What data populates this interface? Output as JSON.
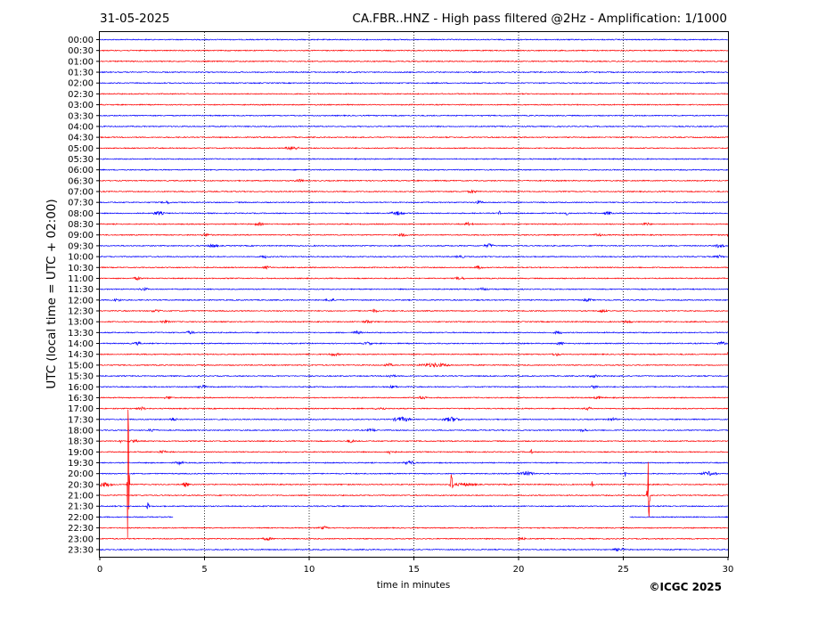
{
  "header": {
    "date": "31-05-2025",
    "title": "CA.FBR..HNZ - High pass filtered @2Hz - Amplification: 1/1000"
  },
  "footer": {
    "copyright": "©ICGC 2025"
  },
  "chart_data": {
    "type": "line",
    "title": "CA.FBR..HNZ - High pass filtered @2Hz - Amplification: 1/1000",
    "xlabel": "time in minutes",
    "ylabel": "UTC (local time = UTC + 02:00)",
    "xlim": [
      0,
      30
    ],
    "x_ticks": [
      0,
      5,
      10,
      15,
      20,
      25,
      30
    ],
    "grid": "vertical dotted lines at 5-minute intervals",
    "row_labels": [
      "00:00",
      "00:30",
      "01:00",
      "01:30",
      "02:00",
      "02:30",
      "03:00",
      "03:30",
      "04:00",
      "04:30",
      "05:00",
      "05:30",
      "06:00",
      "06:30",
      "07:00",
      "07:30",
      "08:00",
      "08:30",
      "09:00",
      "09:30",
      "10:00",
      "10:30",
      "11:00",
      "11:30",
      "12:00",
      "12:30",
      "13:00",
      "13:30",
      "14:00",
      "14:30",
      "15:00",
      "15:30",
      "16:00",
      "16:30",
      "17:00",
      "17:30",
      "18:00",
      "18:30",
      "19:00",
      "19:30",
      "20:00",
      "20:30",
      "21:00",
      "21:30",
      "22:00",
      "22:30",
      "23:00",
      "23:30"
    ],
    "series_colors": [
      "#0000ff",
      "#ff0000"
    ],
    "color_pattern": "rows alternate blue, red, red, blue (period of 4 half-hour rows)",
    "gap": {
      "row": "22:00",
      "x_range": [
        3.5,
        25.3
      ]
    },
    "events": [
      {
        "row": "20:30",
        "x": 1.35,
        "amp": 110
      },
      {
        "row": "20:30",
        "x": 16.8,
        "amp": 28
      },
      {
        "row": "20:30",
        "x": 23.5,
        "amp": 6
      },
      {
        "row": "21:00",
        "x": 26.2,
        "amp": 60
      },
      {
        "row": "21:30",
        "x": 2.3,
        "amp": 7
      },
      {
        "row": "20:00",
        "x": 25.1,
        "amp": 5
      },
      {
        "row": "19:00",
        "x": 20.6,
        "amp": 5
      },
      {
        "row": "08:00",
        "x": 19.1,
        "amp": 4
      },
      {
        "row": "08:00",
        "x": 22.3,
        "amp": 4
      },
      {
        "row": "09:00",
        "x": 30.0,
        "amp": 3
      },
      {
        "row": "14:30",
        "x": 30.0,
        "amp": 3
      },
      {
        "row": "18:30",
        "x": 1.0,
        "amp": 3
      }
    ],
    "bursts": [
      {
        "row": "05:00",
        "x": 9.2,
        "w": 0.7,
        "amp": 2.5
      },
      {
        "row": "06:30",
        "x": 9.5,
        "w": 0.5,
        "amp": 2
      },
      {
        "row": "07:00",
        "x": 17.8,
        "w": 0.5,
        "amp": 2
      },
      {
        "row": "07:30",
        "x": 3.2,
        "w": 0.5,
        "amp": 2
      },
      {
        "row": "07:30",
        "x": 18.1,
        "w": 0.5,
        "amp": 2
      },
      {
        "row": "08:00",
        "x": 2.8,
        "w": 0.6,
        "amp": 2.5
      },
      {
        "row": "08:00",
        "x": 14.2,
        "w": 0.7,
        "amp": 2.5
      },
      {
        "row": "08:00",
        "x": 24.3,
        "w": 0.5,
        "amp": 2
      },
      {
        "row": "08:30",
        "x": 7.6,
        "w": 0.5,
        "amp": 2
      },
      {
        "row": "08:30",
        "x": 17.6,
        "w": 0.5,
        "amp": 2
      },
      {
        "row": "08:30",
        "x": 26.1,
        "w": 0.5,
        "amp": 2
      },
      {
        "row": "09:00",
        "x": 5.1,
        "w": 0.5,
        "amp": 2
      },
      {
        "row": "09:00",
        "x": 14.5,
        "w": 0.5,
        "amp": 2
      },
      {
        "row": "09:00",
        "x": 23.8,
        "w": 0.5,
        "amp": 2
      },
      {
        "row": "09:30",
        "x": 5.4,
        "w": 0.5,
        "amp": 2.5
      },
      {
        "row": "09:30",
        "x": 18.6,
        "w": 0.5,
        "amp": 2.5
      },
      {
        "row": "09:30",
        "x": 29.6,
        "w": 0.5,
        "amp": 2.5
      },
      {
        "row": "10:00",
        "x": 7.9,
        "w": 0.5,
        "amp": 2
      },
      {
        "row": "10:00",
        "x": 17.2,
        "w": 0.5,
        "amp": 2
      },
      {
        "row": "10:00",
        "x": 29.6,
        "w": 0.5,
        "amp": 2
      },
      {
        "row": "10:30",
        "x": 8.0,
        "w": 0.5,
        "amp": 2
      },
      {
        "row": "10:30",
        "x": 18.1,
        "w": 0.5,
        "amp": 2
      },
      {
        "row": "11:00",
        "x": 1.8,
        "w": 0.5,
        "amp": 2
      },
      {
        "row": "11:00",
        "x": 17.2,
        "w": 0.5,
        "amp": 2
      },
      {
        "row": "11:30",
        "x": 2.1,
        "w": 0.5,
        "amp": 2
      },
      {
        "row": "11:30",
        "x": 18.3,
        "w": 0.5,
        "amp": 2
      },
      {
        "row": "12:00",
        "x": 0.8,
        "w": 0.5,
        "amp": 2
      },
      {
        "row": "12:00",
        "x": 11.0,
        "w": 0.5,
        "amp": 2
      },
      {
        "row": "12:00",
        "x": 23.3,
        "w": 0.5,
        "amp": 2
      },
      {
        "row": "12:30",
        "x": 2.7,
        "w": 0.5,
        "amp": 2
      },
      {
        "row": "12:30",
        "x": 13.1,
        "w": 0.5,
        "amp": 2
      },
      {
        "row": "12:30",
        "x": 24.0,
        "w": 0.5,
        "amp": 2
      },
      {
        "row": "13:00",
        "x": 3.1,
        "w": 0.5,
        "amp": 2
      },
      {
        "row": "13:00",
        "x": 12.8,
        "w": 0.5,
        "amp": 2
      },
      {
        "row": "13:00",
        "x": 25.2,
        "w": 0.5,
        "amp": 2
      },
      {
        "row": "13:30",
        "x": 4.3,
        "w": 0.5,
        "amp": 2
      },
      {
        "row": "13:30",
        "x": 12.3,
        "w": 0.5,
        "amp": 2
      },
      {
        "row": "13:30",
        "x": 21.9,
        "w": 0.5,
        "amp": 2
      },
      {
        "row": "14:00",
        "x": 1.8,
        "w": 0.5,
        "amp": 2
      },
      {
        "row": "14:00",
        "x": 12.8,
        "w": 0.5,
        "amp": 2
      },
      {
        "row": "14:00",
        "x": 22.0,
        "w": 0.5,
        "amp": 2
      },
      {
        "row": "14:00",
        "x": 29.7,
        "w": 0.5,
        "amp": 2
      },
      {
        "row": "14:30",
        "x": 11.2,
        "w": 0.6,
        "amp": 2
      },
      {
        "row": "14:30",
        "x": 21.8,
        "w": 0.5,
        "amp": 2
      },
      {
        "row": "15:00",
        "x": 16.0,
        "w": 1.6,
        "amp": 2.5
      },
      {
        "row": "15:00",
        "x": 13.8,
        "w": 0.5,
        "amp": 2
      },
      {
        "row": "15:30",
        "x": 13.9,
        "w": 0.5,
        "amp": 2
      },
      {
        "row": "15:30",
        "x": 23.6,
        "w": 0.5,
        "amp": 2
      },
      {
        "row": "16:00",
        "x": 4.9,
        "w": 0.5,
        "amp": 2
      },
      {
        "row": "16:00",
        "x": 14.0,
        "w": 0.5,
        "amp": 2
      },
      {
        "row": "16:00",
        "x": 23.6,
        "w": 0.5,
        "amp": 2
      },
      {
        "row": "16:30",
        "x": 3.3,
        "w": 0.5,
        "amp": 2
      },
      {
        "row": "16:30",
        "x": 15.4,
        "w": 0.5,
        "amp": 2
      },
      {
        "row": "16:30",
        "x": 23.8,
        "w": 0.5,
        "amp": 2
      },
      {
        "row": "17:00",
        "x": 2.0,
        "w": 0.5,
        "amp": 2
      },
      {
        "row": "17:00",
        "x": 13.4,
        "w": 0.6,
        "amp": 2
      },
      {
        "row": "17:00",
        "x": 23.3,
        "w": 0.5,
        "amp": 2
      },
      {
        "row": "17:30",
        "x": 14.4,
        "w": 0.9,
        "amp": 3
      },
      {
        "row": "17:30",
        "x": 16.8,
        "w": 0.9,
        "amp": 3
      },
      {
        "row": "17:30",
        "x": 3.5,
        "w": 0.5,
        "amp": 2
      },
      {
        "row": "17:30",
        "x": 24.5,
        "w": 0.5,
        "amp": 2
      },
      {
        "row": "18:00",
        "x": 2.5,
        "w": 0.5,
        "amp": 2
      },
      {
        "row": "18:00",
        "x": 13.0,
        "w": 0.5,
        "amp": 2
      },
      {
        "row": "18:00",
        "x": 23.1,
        "w": 0.5,
        "amp": 2
      },
      {
        "row": "18:30",
        "x": 1.6,
        "w": 0.5,
        "amp": 2
      },
      {
        "row": "18:30",
        "x": 12.0,
        "w": 0.5,
        "amp": 2
      },
      {
        "row": "19:00",
        "x": 3.0,
        "w": 0.5,
        "amp": 2
      },
      {
        "row": "19:00",
        "x": 13.9,
        "w": 0.5,
        "amp": 2.5
      },
      {
        "row": "19:30",
        "x": 3.8,
        "w": 0.5,
        "amp": 2
      },
      {
        "row": "19:30",
        "x": 14.8,
        "w": 0.6,
        "amp": 2.5
      },
      {
        "row": "20:00",
        "x": 20.4,
        "w": 1.0,
        "amp": 2.5
      },
      {
        "row": "20:00",
        "x": 29.1,
        "w": 0.8,
        "amp": 2.5
      },
      {
        "row": "20:30",
        "x": 0.2,
        "w": 0.8,
        "amp": 3
      },
      {
        "row": "20:30",
        "x": 4.1,
        "w": 0.4,
        "amp": 3
      },
      {
        "row": "20:30",
        "x": 17.4,
        "w": 1.4,
        "amp": 2
      },
      {
        "row": "22:30",
        "x": 10.7,
        "w": 0.5,
        "amp": 2
      },
      {
        "row": "23:00",
        "x": 8.0,
        "w": 0.5,
        "amp": 2
      },
      {
        "row": "23:00",
        "x": 20.1,
        "w": 0.5,
        "amp": 2
      },
      {
        "row": "23:30",
        "x": 24.8,
        "w": 0.7,
        "amp": 2
      }
    ]
  }
}
